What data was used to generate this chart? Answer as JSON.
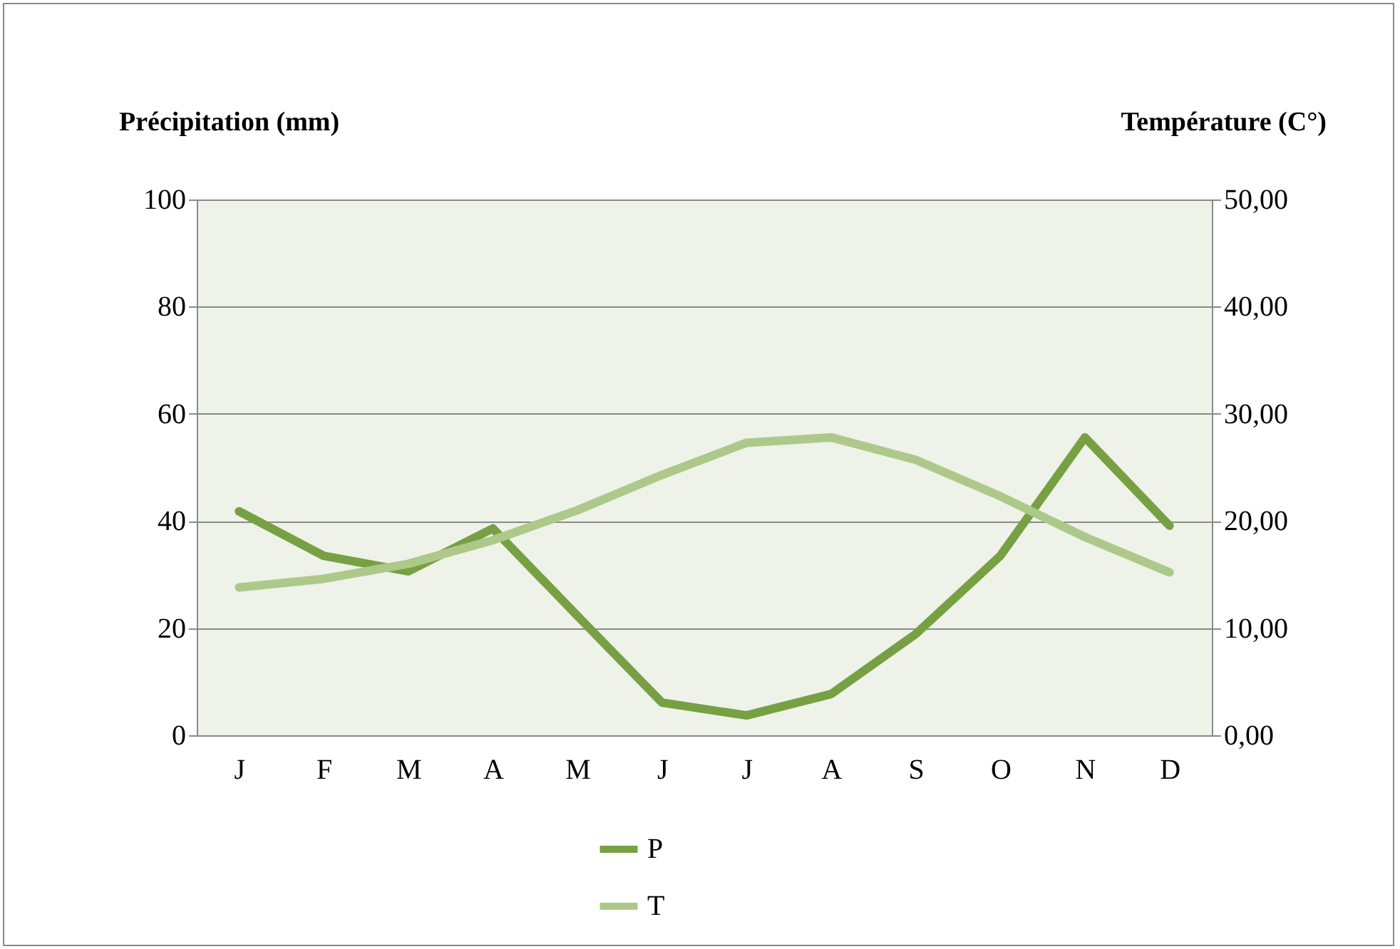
{
  "chart_data": {
    "type": "line",
    "ylabel": "Précipitation (mm)",
    "y2label": "Température (C°)",
    "categories": [
      "J",
      "F",
      "M",
      "A",
      "M",
      "J",
      "J",
      "A",
      "S",
      "O",
      "N",
      "D"
    ],
    "series": [
      {
        "name": "P",
        "color": "#77a043",
        "values": [
          41.8,
          33.5,
          30.6,
          38.6,
          22.3,
          6.1,
          3.7,
          7.7,
          18.9,
          33.5,
          55.6,
          39.1
        ]
      },
      {
        "name": "T",
        "color": "#adc98a",
        "axis": "y2",
        "values": [
          13.8,
          14.6,
          16.0,
          18.2,
          21.0,
          24.3,
          27.3,
          27.8,
          25.7,
          22.3,
          18.5,
          15.2
        ]
      }
    ],
    "ylim": [
      0,
      100
    ],
    "yticks": [
      0,
      20,
      40,
      60,
      80,
      100
    ],
    "y2lim": [
      0,
      50
    ],
    "y2ticks": [
      {
        "value": 0,
        "label": "0,00"
      },
      {
        "value": 10,
        "label": "10,00"
      },
      {
        "value": 20,
        "label": "20,00"
      },
      {
        "value": 30,
        "label": "30,00"
      },
      {
        "value": 40,
        "label": "40,00"
      },
      {
        "value": 50,
        "label": "50,00"
      }
    ],
    "grid": "y",
    "legend": "bottom",
    "marker": "none",
    "line_style": "solid"
  }
}
